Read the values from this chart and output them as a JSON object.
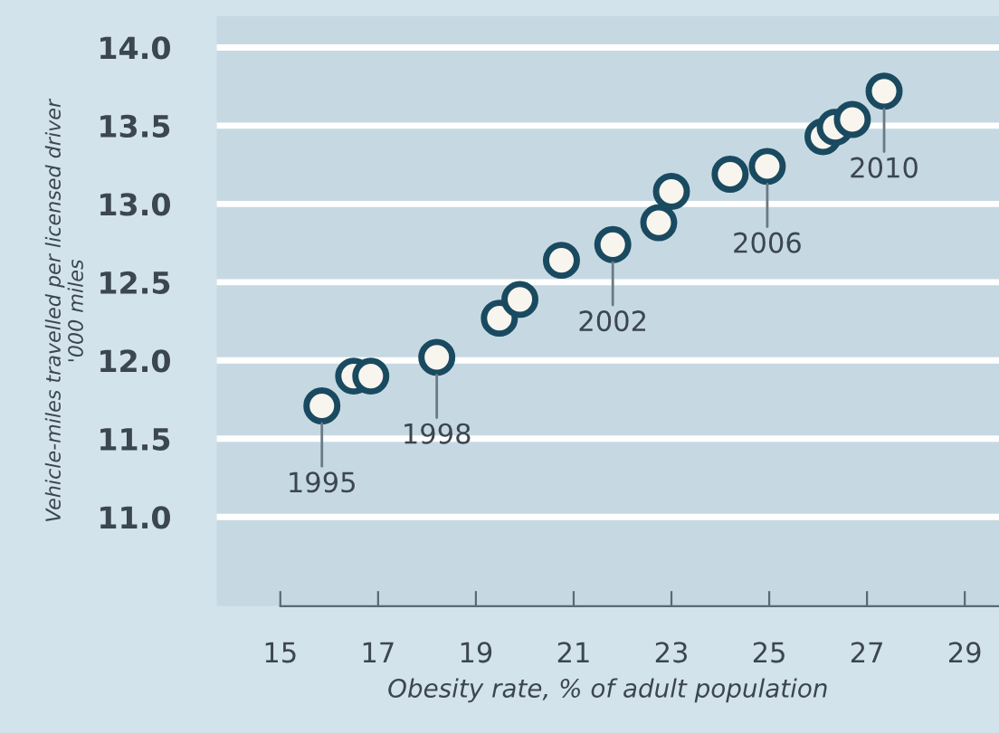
{
  "chart_data": {
    "type": "scatter",
    "xlabel": "Obesity rate, % of adult population",
    "ylabel": "Vehicle-miles travelled per licensed driver\n'000 miles",
    "series": [
      {
        "color": "#1a4a60",
        "x": [
          15.85,
          16.5,
          16.85,
          18.2,
          19.48,
          19.9,
          20.75,
          21.8,
          22.74,
          23.0,
          24.2,
          24.96,
          26.1,
          26.35,
          26.7,
          27.35
        ],
        "values": [
          11.71,
          11.9,
          11.9,
          12.02,
          12.27,
          12.39,
          12.64,
          12.74,
          12.88,
          13.08,
          13.19,
          13.24,
          13.43,
          13.49,
          13.54,
          13.72
        ]
      }
    ],
    "annotations": [
      {
        "text": "1995",
        "x": 15.85,
        "y": 11.71
      },
      {
        "text": "1998",
        "x": 18.2,
        "y": 12.02
      },
      {
        "text": "2002",
        "x": 21.8,
        "y": 12.74
      },
      {
        "text": "2006",
        "x": 24.96,
        "y": 13.24
      },
      {
        "text": "2010",
        "x": 27.35,
        "y": 13.72
      }
    ],
    "xlim": [
      13.7,
      29.7
    ],
    "ylim": [
      10.43,
      14.2
    ],
    "xticks": [
      15,
      17,
      19,
      21,
      23,
      25,
      27,
      29
    ],
    "yticks": [
      {
        "value": 11.0,
        "label": "11.0"
      },
      {
        "value": 11.5,
        "label": "11.5"
      },
      {
        "value": 12.0,
        "label": "12.0"
      },
      {
        "value": 12.5,
        "label": "12.5"
      },
      {
        "value": 13.0,
        "label": "13.0"
      },
      {
        "value": 13.5,
        "label": "13.5"
      },
      {
        "value": 14.0,
        "label": "14.0"
      }
    ],
    "grid": "y",
    "marker": "circle"
  }
}
